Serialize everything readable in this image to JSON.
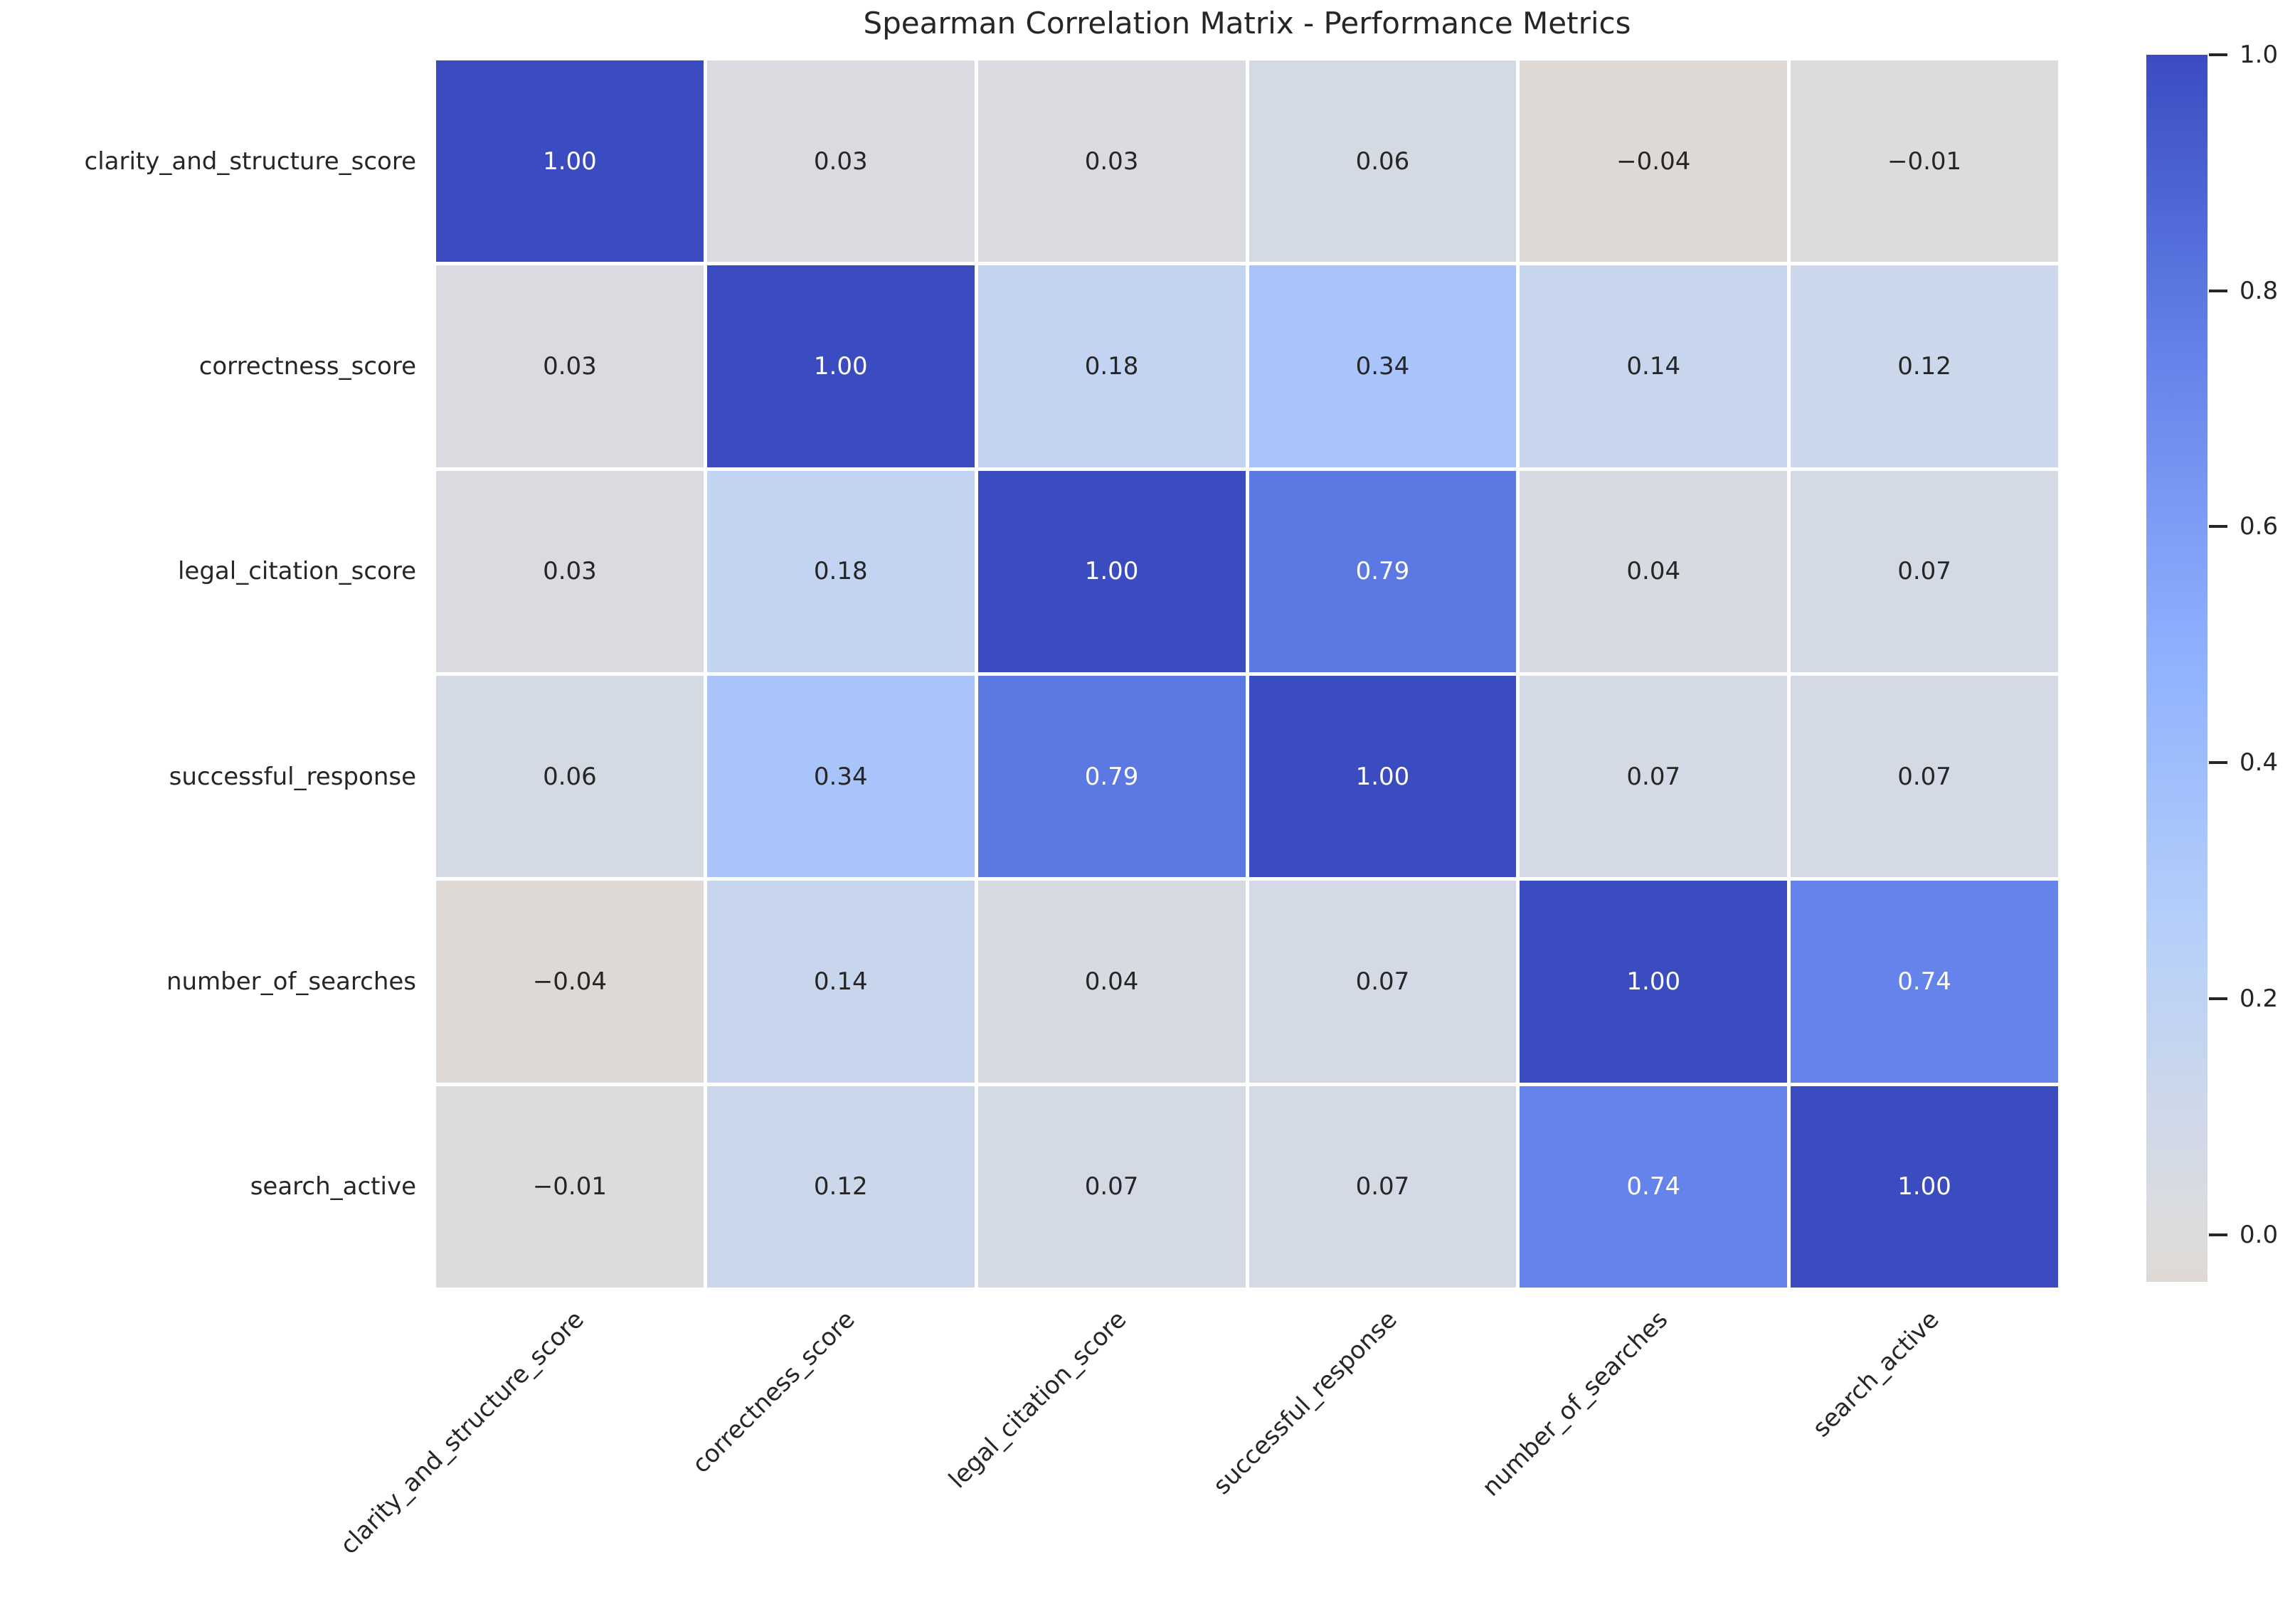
{
  "chart_data": {
    "type": "heatmap",
    "title": "Spearman Correlation Matrix - Performance Metrics",
    "row_labels": [
      "clarity_and_structure_score",
      "correctness_score",
      "legal_citation_score",
      "successful_response",
      "number_of_searches",
      "search_active"
    ],
    "col_labels": [
      "clarity_and_structure_score",
      "correctness_score",
      "legal_citation_score",
      "successful_response",
      "number_of_searches",
      "search_active"
    ],
    "matrix": [
      [
        1.0,
        0.03,
        0.03,
        0.06,
        -0.04,
        -0.01
      ],
      [
        0.03,
        1.0,
        0.18,
        0.34,
        0.14,
        0.12
      ],
      [
        0.03,
        0.18,
        1.0,
        0.79,
        0.04,
        0.07
      ],
      [
        0.06,
        0.34,
        0.79,
        1.0,
        0.07,
        0.07
      ],
      [
        -0.04,
        0.14,
        0.04,
        0.07,
        1.0,
        0.74
      ],
      [
        -0.01,
        0.12,
        0.07,
        0.07,
        0.74,
        1.0
      ]
    ],
    "value_format": "2dp",
    "vmin": -0.04,
    "vmax": 1.0,
    "center": 0,
    "colormap": "coolwarm_r",
    "colormap_anchors_low_to_high": [
      "#dfd9d5",
      "#dddcdb",
      "#b8d0f9",
      "#8db0fe",
      "#6282ea",
      "#3b4cc0"
    ],
    "coolwarm_rgb_table": [
      [
        59,
        76,
        192
      ],
      [
        98,
        130,
        234
      ],
      [
        141,
        176,
        254
      ],
      [
        184,
        208,
        249
      ],
      [
        221,
        221,
        221
      ],
      [
        236,
        195,
        173
      ],
      [
        244,
        154,
        123
      ],
      [
        222,
        96,
        77
      ],
      [
        180,
        4,
        38
      ]
    ],
    "colorbar_ticks": [
      {
        "label": "1.0",
        "value": 1.0
      },
      {
        "label": "0.8",
        "value": 0.8
      },
      {
        "label": "0.6",
        "value": 0.6
      },
      {
        "label": "0.4",
        "value": 0.4
      },
      {
        "label": "0.2",
        "value": 0.2
      },
      {
        "label": "0.0",
        "value": 0.0
      }
    ],
    "grid_line_color": "#ffffff",
    "annotation_color_dark": "#262626",
    "annotation_color_light": "#ffffff",
    "background_color": "#ffffff",
    "legend_position": "right",
    "x_tick_rotation_deg": 45
  }
}
